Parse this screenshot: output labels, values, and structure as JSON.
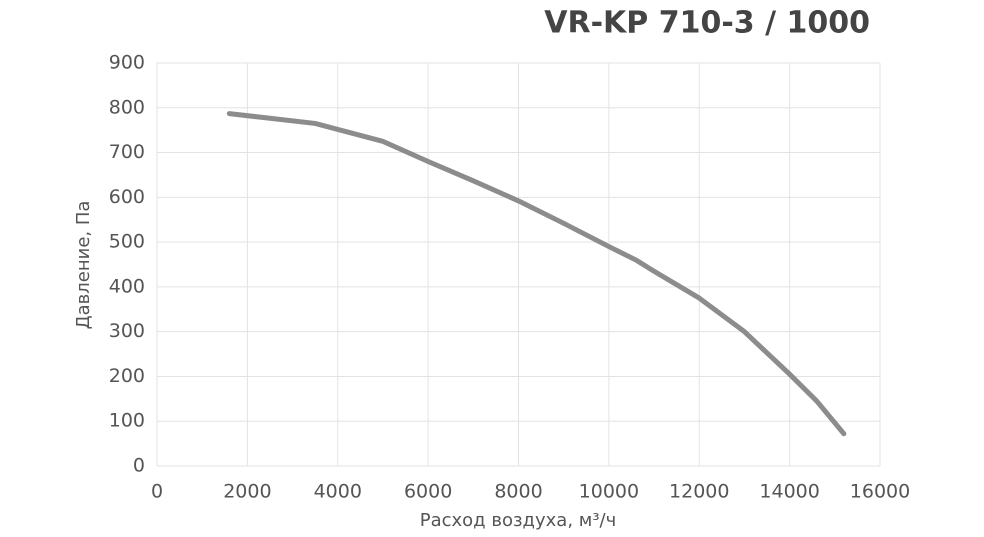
{
  "chart_data": {
    "type": "line",
    "title": "VR-KP 710-3 / 1000",
    "x_label": "Расход воздуха, м³/ч",
    "y_label": "Давление, Па",
    "x": [
      1600,
      3500,
      5000,
      6000,
      7000,
      8000,
      9000,
      10000,
      10600,
      11000,
      12000,
      13000,
      14000,
      14600,
      15200
    ],
    "series": [
      {
        "name": "VR-KP 710-3 / 1000",
        "color": "#8c8c8c",
        "values": [
          787,
          765,
          725,
          680,
          637,
          592,
          542,
          490,
          460,
          435,
          375,
          300,
          205,
          145,
          72
        ]
      }
    ],
    "xlim": [
      0,
      16000
    ],
    "xticks": [
      0,
      2000,
      4000,
      6000,
      8000,
      10000,
      12000,
      14000,
      16000
    ],
    "ylim": [
      0,
      900
    ],
    "yticks": [
      0,
      100,
      200,
      300,
      400,
      500,
      600,
      700,
      800,
      900
    ],
    "grid": true
  }
}
